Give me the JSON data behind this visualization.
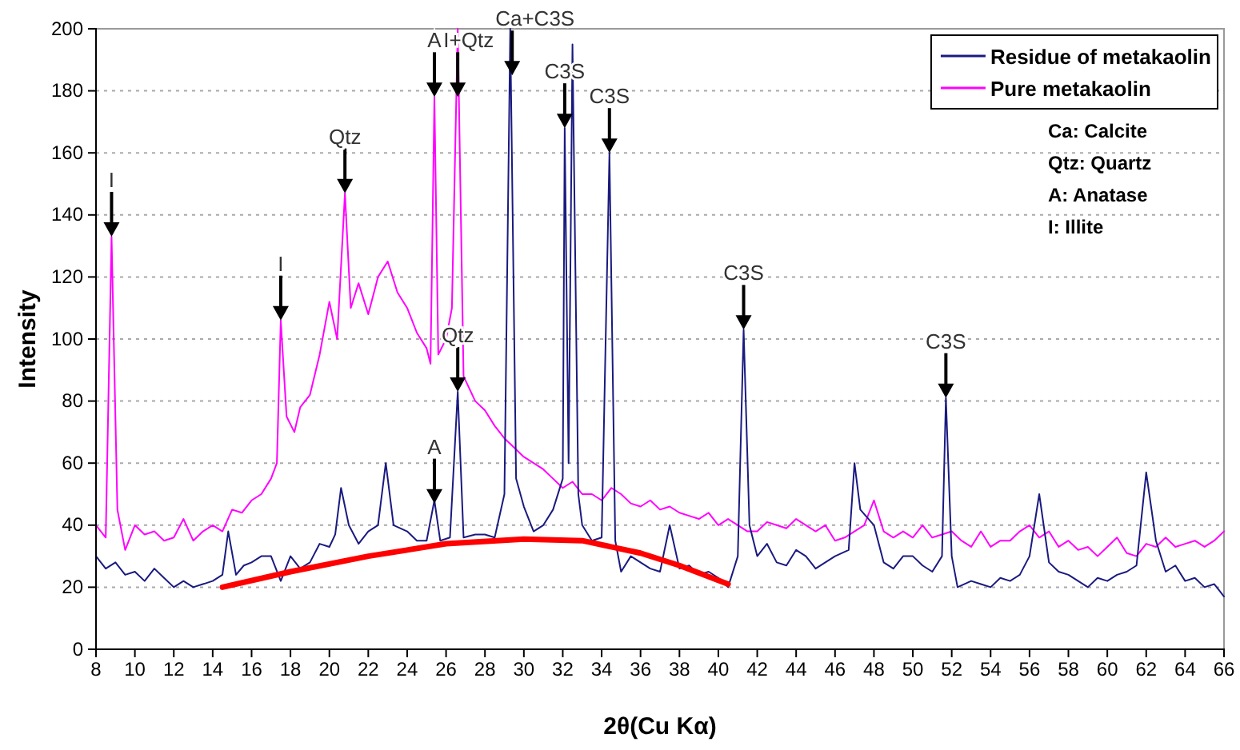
{
  "chart_data": {
    "type": "line",
    "xlabel": "2θ(Cu Kα)",
    "ylabel": "Intensity",
    "xlim": [
      8,
      66
    ],
    "xticks": [
      8,
      10,
      12,
      14,
      16,
      18,
      20,
      22,
      24,
      26,
      28,
      30,
      32,
      34,
      36,
      38,
      40,
      42,
      44,
      46,
      48,
      50,
      52,
      54,
      56,
      58,
      60,
      62,
      64,
      66
    ],
    "ylim": [
      0,
      200
    ],
    "yticks": [
      0,
      20,
      40,
      60,
      80,
      100,
      120,
      140,
      160,
      180,
      200
    ],
    "grid": "y",
    "legend": "top right",
    "marker": "none",
    "line_style": "solid",
    "series": [
      {
        "name": "Residue of metakaolin",
        "color": "#1a1a80",
        "x": [
          8,
          8.5,
          9,
          9.5,
          10,
          10.5,
          11,
          11.5,
          12,
          12.5,
          13,
          13.5,
          14,
          14.5,
          14.8,
          15.2,
          15.6,
          16,
          16.5,
          17,
          17.5,
          18,
          18.5,
          19,
          19.5,
          20,
          20.3,
          20.6,
          21,
          21.5,
          22,
          22.5,
          22.9,
          23.3,
          24,
          24.5,
          25,
          25.4,
          25.7,
          26.2,
          26.6,
          26.9,
          27.5,
          28,
          28.5,
          29,
          29.3,
          29.6,
          30,
          30.5,
          31,
          31.5,
          32,
          32.1,
          32.3,
          32.5,
          32.8,
          33,
          33.5,
          34,
          34.4,
          34.7,
          35,
          35.5,
          36,
          36.5,
          37,
          37.5,
          38,
          38.5,
          39,
          39.5,
          40,
          40.5,
          41,
          41.3,
          41.6,
          42,
          42.5,
          43,
          43.5,
          44,
          44.5,
          45,
          45.5,
          46,
          46.7,
          47,
          47.3,
          48,
          48.5,
          49,
          49.5,
          50,
          50.5,
          51,
          51.5,
          51.7,
          52,
          52.3,
          53,
          53.5,
          54,
          54.5,
          55,
          55.5,
          56,
          56.5,
          57,
          57.5,
          58,
          58.5,
          59,
          59.5,
          60,
          60.5,
          61,
          61.5,
          62,
          62.5,
          63,
          63.5,
          64,
          64.5,
          65,
          65.5,
          66
        ],
        "values": [
          30,
          26,
          28,
          24,
          25,
          22,
          26,
          23,
          20,
          22,
          20,
          21,
          22,
          24,
          38,
          24,
          27,
          28,
          30,
          30,
          22,
          30,
          26,
          28,
          34,
          33,
          37,
          52,
          40,
          34,
          38,
          40,
          60,
          40,
          38,
          35,
          35,
          48,
          35,
          36,
          83,
          36,
          37,
          37,
          36,
          50,
          200,
          55,
          46,
          38,
          40,
          45,
          55,
          168,
          60,
          195,
          50,
          40,
          35,
          36,
          160,
          35,
          25,
          30,
          28,
          26,
          25,
          40,
          26,
          27,
          24,
          25,
          23,
          20,
          30,
          103,
          40,
          30,
          34,
          28,
          27,
          32,
          30,
          26,
          28,
          30,
          32,
          60,
          45,
          40,
          28,
          26,
          30,
          30,
          27,
          25,
          30,
          81,
          30,
          20,
          22,
          21,
          20,
          23,
          22,
          24,
          30,
          50,
          28,
          25,
          24,
          22,
          20,
          23,
          22,
          24,
          25,
          27,
          57,
          35,
          25,
          27,
          22,
          23,
          20,
          21,
          17
        ]
      },
      {
        "name": "Pure metakaolin",
        "color": "#ff00ff",
        "x": [
          8,
          8.5,
          8.8,
          9.1,
          9.5,
          10,
          10.5,
          11,
          11.5,
          12,
          12.5,
          13,
          13.5,
          14,
          14.5,
          15,
          15.5,
          16,
          16.5,
          17,
          17.3,
          17.5,
          17.8,
          18.2,
          18.5,
          19,
          19.5,
          20,
          20.4,
          20.8,
          21.1,
          21.5,
          22,
          22.5,
          23,
          23.5,
          24,
          24.5,
          25,
          25.2,
          25.4,
          25.6,
          26,
          26.3,
          26.6,
          26.9,
          27.5,
          28,
          28.5,
          29,
          29.5,
          30,
          30.5,
          31,
          31.5,
          32,
          32.5,
          33,
          33.5,
          34,
          34.5,
          35,
          35.5,
          36,
          36.5,
          37,
          37.5,
          38,
          38.5,
          39,
          39.5,
          40,
          40.5,
          41,
          41.5,
          42,
          42.5,
          43,
          43.5,
          44,
          44.5,
          45,
          45.5,
          46,
          46.5,
          47,
          47.5,
          48,
          48.5,
          49,
          49.5,
          50,
          50.5,
          51,
          51.5,
          52,
          52.5,
          53,
          53.5,
          54,
          54.5,
          55,
          55.5,
          56,
          56.5,
          57,
          57.5,
          58,
          58.5,
          59,
          59.5,
          60,
          60.5,
          61,
          61.5,
          62,
          62.5,
          63,
          63.5,
          64,
          64.5,
          65,
          65.5,
          66
        ],
        "values": [
          40,
          36,
          133,
          45,
          32,
          40,
          37,
          38,
          35,
          36,
          42,
          35,
          38,
          40,
          38,
          45,
          44,
          48,
          50,
          55,
          60,
          106,
          75,
          70,
          78,
          82,
          95,
          112,
          100,
          147,
          110,
          118,
          108,
          120,
          125,
          115,
          110,
          102,
          97,
          92,
          178,
          95,
          100,
          110,
          200,
          88,
          80,
          77,
          72,
          68,
          65,
          62,
          60,
          58,
          55,
          52,
          54,
          50,
          50,
          48,
          52,
          50,
          47,
          46,
          48,
          45,
          46,
          44,
          43,
          42,
          44,
          40,
          42,
          40,
          38,
          38,
          41,
          40,
          39,
          42,
          40,
          38,
          40,
          35,
          36,
          38,
          40,
          48,
          38,
          36,
          38,
          36,
          40,
          36,
          37,
          38,
          35,
          33,
          38,
          33,
          35,
          35,
          38,
          40,
          36,
          38,
          33,
          35,
          32,
          33,
          30,
          33,
          36,
          31,
          30,
          34,
          33,
          36,
          33,
          34,
          35,
          33,
          35,
          38
        ]
      },
      {
        "type": "line",
        "color": "#ff0000",
        "x": [
          14.5,
          18,
          22,
          26,
          30,
          33,
          36,
          38,
          40.5
        ],
        "values": [
          20,
          25,
          30,
          34,
          35.5,
          35,
          31,
          27,
          21
        ]
      }
    ],
    "annotations": [
      {
        "text": "I",
        "x": 8.8,
        "y": 133
      },
      {
        "text": "I",
        "x": 17.5,
        "y": 106
      },
      {
        "text": "Qtz",
        "x": 20.8,
        "y": 147
      },
      {
        "text": "A",
        "x": 25.4,
        "y": 178
      },
      {
        "text": "I+Qtz",
        "x": 26.6,
        "y": 178
      },
      {
        "text": "Ca+C3S",
        "x": 29.4,
        "y": 185
      },
      {
        "text": "C3S",
        "x": 32.1,
        "y": 168
      },
      {
        "text": "C3S",
        "x": 34.4,
        "y": 160
      },
      {
        "text": "Qtz",
        "x": 26.6,
        "y": 83
      },
      {
        "text": "A",
        "x": 25.4,
        "y": 47
      },
      {
        "text": "C3S",
        "x": 41.3,
        "y": 103
      },
      {
        "text": "C3S",
        "x": 51.7,
        "y": 81
      },
      "Ca: Calcite",
      "Qtz: Quartz",
      "A: Anatase",
      "I: Illite"
    ]
  }
}
